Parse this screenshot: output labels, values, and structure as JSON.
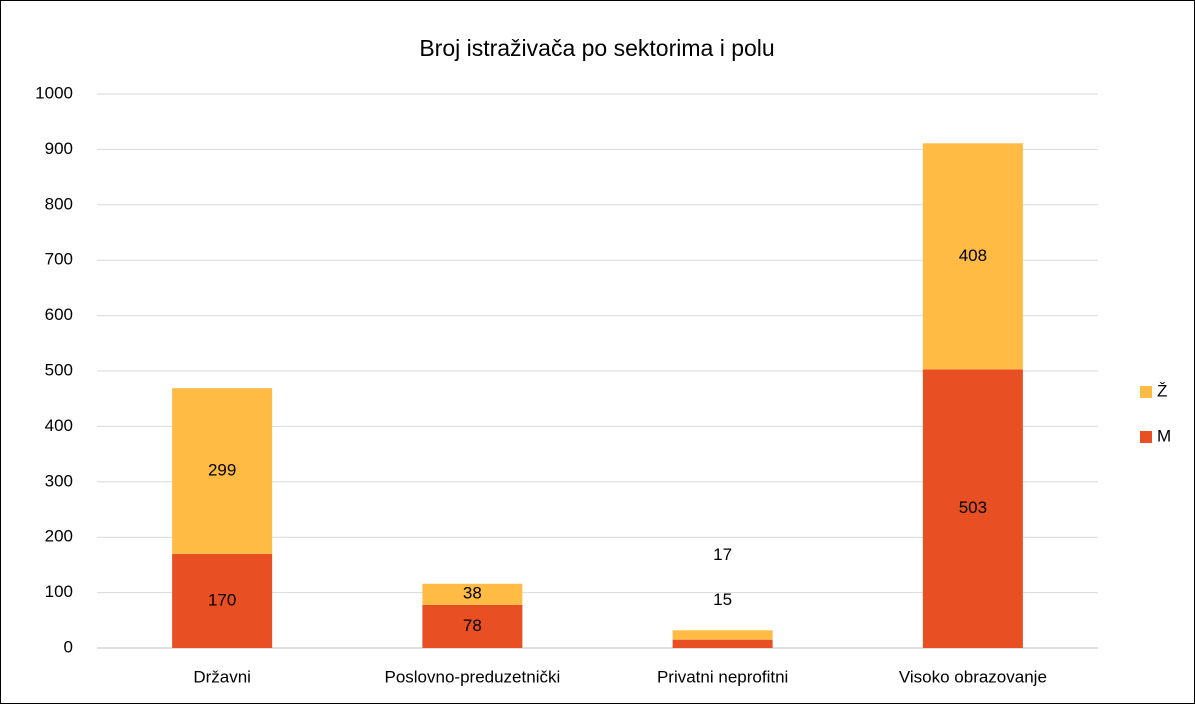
{
  "chart_data": {
    "type": "stacked_bar",
    "title": "Broj istraživača po sektorima i polu",
    "categories": [
      "Državni",
      "Poslovno-preduzetnički",
      "Privatni neprofitni",
      "Visoko obrazovanje"
    ],
    "series": [
      {
        "name": "M",
        "color": "#e84f22",
        "values": [
          170,
          78,
          15,
          503
        ]
      },
      {
        "name": "Ž",
        "color": "#ffbb44",
        "values": [
          299,
          38,
          17,
          408
        ]
      }
    ],
    "ylim": [
      0,
      1000
    ],
    "yticks": [
      0,
      100,
      200,
      300,
      400,
      500,
      600,
      700,
      800,
      900,
      1000
    ],
    "grid": true,
    "legend": "right"
  }
}
